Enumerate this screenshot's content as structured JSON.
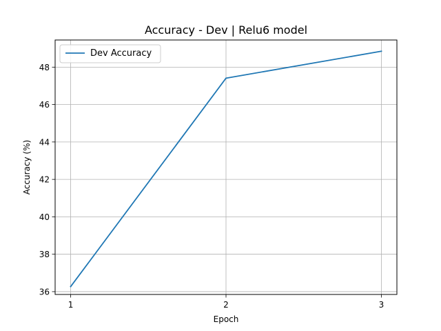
{
  "chart_data": {
    "type": "line",
    "title": "Accuracy - Dev | Relu6 model",
    "xlabel": "Epoch",
    "ylabel": "Accuracy (%)",
    "x": [
      1,
      2,
      3
    ],
    "xticks": [
      1,
      2,
      3
    ],
    "xtick_labels": [
      "1",
      "2",
      "3"
    ],
    "yticks": [
      36,
      38,
      40,
      42,
      44,
      46,
      48
    ],
    "ytick_labels": [
      "36",
      "38",
      "40",
      "42",
      "44",
      "46",
      "48"
    ],
    "xlim": [
      0.9,
      3.1
    ],
    "ylim": [
      35.85,
      49.45
    ],
    "grid": true,
    "legend_position": "top-left",
    "series": [
      {
        "name": "Dev Accuracy",
        "color": "#1f77b4",
        "values": [
          36.27,
          47.41,
          48.85
        ]
      }
    ]
  }
}
